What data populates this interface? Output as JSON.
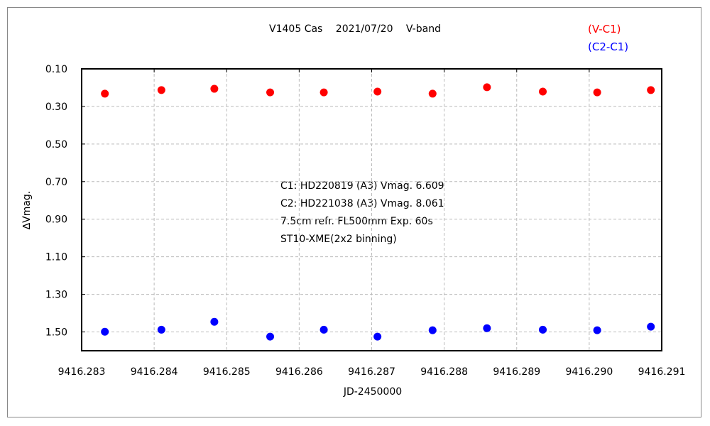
{
  "chart_data": {
    "type": "scatter",
    "title": "V1405 Cas　 2021/07/20　 V-band",
    "xlabel": "JD-2450000",
    "ylabel": "∆Vmag.",
    "xlim": [
      9416.283,
      9416.291
    ],
    "ylim": [
      0.1,
      1.6
    ],
    "y_inverted": true,
    "grid": true,
    "x_ticks": [
      "9416.283",
      "9416.284",
      "9416.285",
      "9416.286",
      "9416.287",
      "9416.288",
      "9416.289",
      "9416.290",
      "9416.291"
    ],
    "y_ticks": [
      "0.10",
      "0.30",
      "0.50",
      "0.70",
      "0.90",
      "1.10",
      "1.30",
      "1.50"
    ],
    "legend_position": "top-right",
    "annotation": [
      "C1: HD220819 (A3) Vmag. 6.609",
      "C2: HD221038 (A3) Vmag. 8.061",
      "7.5cm refr. FL500mm Exp. 60s",
      "ST10-XME(2x2 binning)"
    ],
    "x": [
      9416.28332,
      9416.2841,
      9416.28483,
      9416.2856,
      9416.28634,
      9416.28708,
      9416.28784,
      9416.28859,
      9416.28936,
      9416.29011,
      9416.29085
    ],
    "series": [
      {
        "name": "(V-C1)",
        "color": "#ff0000",
        "values": [
          0.232,
          0.213,
          0.206,
          0.225,
          0.225,
          0.221,
          0.232,
          0.198,
          0.221,
          0.225,
          0.213
        ]
      },
      {
        "name": "(C2-C1)",
        "color": "#0000ff",
        "values": [
          1.499,
          1.488,
          1.446,
          1.525,
          1.488,
          1.525,
          1.491,
          1.48,
          1.488,
          1.491,
          1.472
        ]
      }
    ]
  }
}
